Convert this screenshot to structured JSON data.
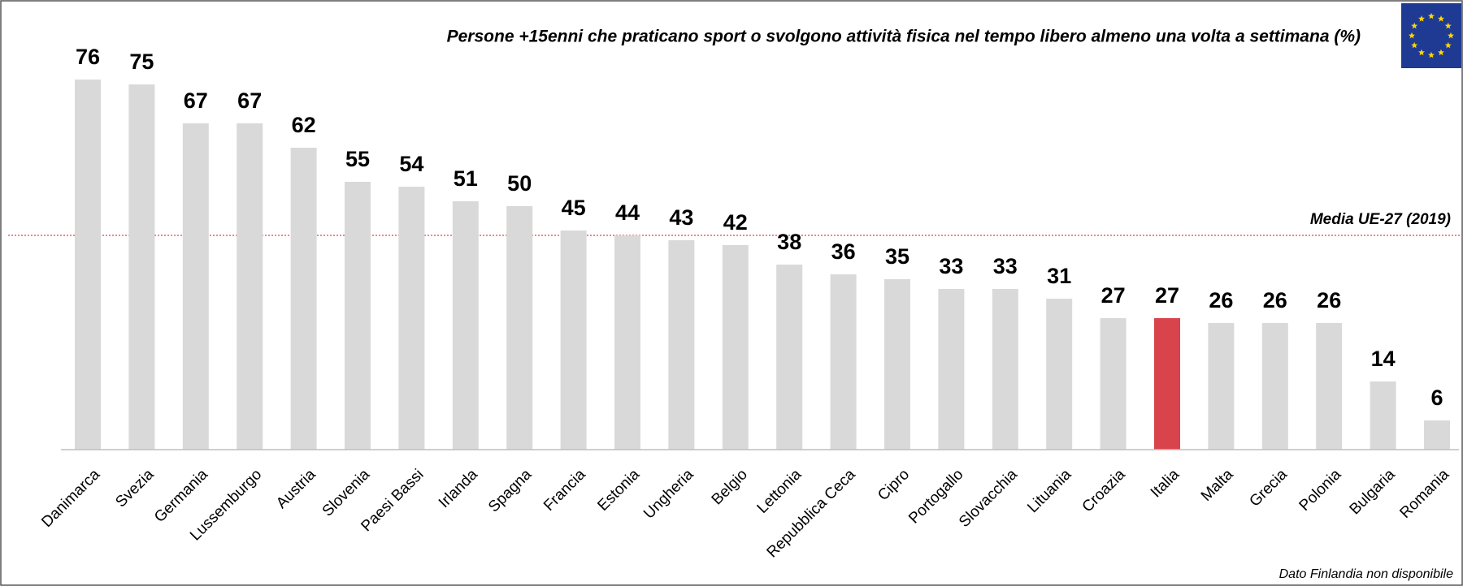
{
  "chart_data": {
    "type": "bar",
    "title": "Persone +15enni che praticano sport o svolgono attività fisica nel tempo libero almeno una volta a settimana (%)",
    "categories": [
      "Danimarca",
      "Svezia",
      "Germania",
      "Lussemburgo",
      "Austria",
      "Slovenia",
      "Paesi Bassi",
      "Irlanda",
      "Spagna",
      "Francia",
      "Estonia",
      "Ungheria",
      "Belgio",
      "Lettonia",
      "Repubblica Ceca",
      "Cipro",
      "Portogallo",
      "Slovacchia",
      "Lituania",
      "Croazia",
      "Italia",
      "Malta",
      "Grecia",
      "Polonia",
      "Bulgaria",
      "Romania"
    ],
    "values": [
      76,
      75,
      67,
      67,
      62,
      55,
      54,
      51,
      50,
      45,
      44,
      43,
      42,
      38,
      36,
      35,
      33,
      33,
      31,
      27,
      27,
      26,
      26,
      26,
      14,
      6
    ],
    "color": "#d9d9d9",
    "highlight": {
      "category": "Italia",
      "color": "#d9434b"
    },
    "ylim": [
      0,
      80
    ],
    "reference_line": {
      "value": 44,
      "label": "Media UE-27 (2019)",
      "color": "#d9434b"
    },
    "note": "Dato Finlandia non disponibile"
  }
}
